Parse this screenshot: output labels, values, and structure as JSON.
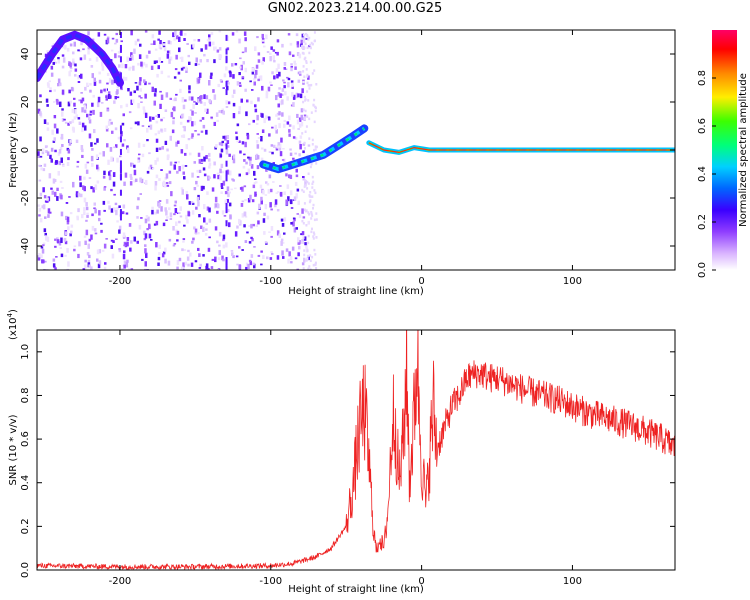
{
  "title": "GN02.2023.214.00.00.G25",
  "chart_data": [
    {
      "type": "heatmap",
      "xlabel": "Height of straight line (km)",
      "ylabel": "Frequency (Hz)",
      "xlim": [
        -255,
        168
      ],
      "ylim": [
        -50,
        50
      ],
      "xticks": [
        -200,
        -100,
        0,
        100
      ],
      "yticks": [
        -40,
        -20,
        0,
        20,
        40
      ],
      "colorbar": {
        "label": "Normalized spectral amplitude",
        "range": [
          0,
          1
        ],
        "ticks": [
          0.0,
          0.2,
          0.4,
          0.6,
          0.8
        ],
        "colors": [
          "#ffffff",
          "#d9b3ff",
          "#8f3dff",
          "#3a00ff",
          "#0066ff",
          "#00d0ff",
          "#00ff7a",
          "#3cff00",
          "#ffee00",
          "#ff8800",
          "#ff0000",
          "#ff0066"
        ]
      },
      "tracks": [
        {
          "x": [
            -255,
            -245,
            -238,
            -230,
            -222,
            -212,
            -205,
            -200
          ],
          "y": [
            30,
            40,
            46,
            48,
            46,
            40,
            34,
            28
          ]
        },
        {
          "x": [
            -105,
            -95,
            -85,
            -75,
            -65,
            -55,
            -45,
            -38
          ],
          "y": [
            -6,
            -8,
            -6,
            -4,
            -2,
            2,
            6,
            9
          ]
        },
        {
          "x": [
            -35,
            -25,
            -15,
            -5,
            5,
            15,
            50,
            100,
            168
          ],
          "y": [
            3,
            0,
            -1,
            1,
            0,
            0,
            0,
            0,
            0
          ]
        }
      ]
    },
    {
      "type": "line",
      "xlabel": "Height of straight line (km)",
      "ylabel": "SNR (10 * v/v)",
      "yscale_label": "(x10",
      "yscale_exp": "4",
      "yscale_suffix": ")",
      "xlim": [
        -255,
        168
      ],
      "ylim": [
        0,
        1.1
      ],
      "xticks": [
        -200,
        -100,
        0,
        100
      ],
      "yticks": [
        0.0,
        0.2,
        0.4,
        0.6,
        0.8,
        1.0
      ],
      "color": "#ee2222",
      "series": [
        {
          "x": [
            -255,
            -200,
            -150,
            -100,
            -85,
            -70,
            -60,
            -50,
            -45,
            -42,
            -38,
            -35,
            -32,
            -30,
            -28,
            -25,
            -22,
            -20,
            -18,
            -15,
            -12,
            -10,
            -8,
            -5,
            -3,
            0,
            3,
            5,
            8,
            10,
            15,
            20,
            25,
            30,
            35,
            40,
            45,
            50,
            60,
            70,
            80,
            90,
            100,
            110,
            120,
            130,
            140,
            150,
            160,
            168
          ],
          "y": [
            0.02,
            0.015,
            0.015,
            0.02,
            0.03,
            0.06,
            0.1,
            0.2,
            0.4,
            0.6,
            0.75,
            0.5,
            0.2,
            0.08,
            0.15,
            0.1,
            0.3,
            0.6,
            0.75,
            0.4,
            0.6,
            0.95,
            0.4,
            0.7,
            1.0,
            0.5,
            0.3,
            0.5,
            0.75,
            0.55,
            0.65,
            0.75,
            0.8,
            0.88,
            0.9,
            0.9,
            0.88,
            0.88,
            0.85,
            0.82,
            0.8,
            0.78,
            0.75,
            0.72,
            0.7,
            0.68,
            0.66,
            0.63,
            0.6,
            0.56
          ]
        }
      ]
    }
  ]
}
